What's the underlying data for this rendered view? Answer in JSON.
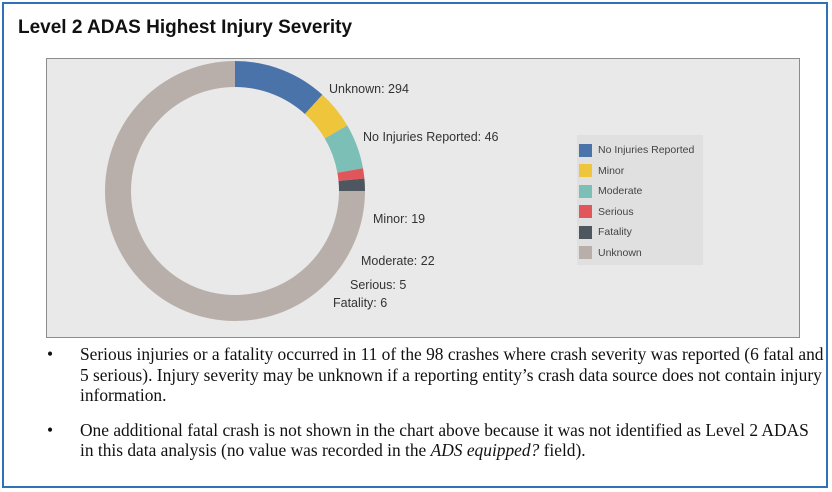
{
  "title": "Level 2 ADAS Highest Injury Severity",
  "chart_data": {
    "type": "donut",
    "title": "",
    "categories": [
      "No Injuries Reported",
      "Minor",
      "Moderate",
      "Serious",
      "Fatality",
      "Unknown"
    ],
    "values": [
      46,
      19,
      22,
      5,
      6,
      294
    ],
    "colors": [
      "#4a73aa",
      "#efc53b",
      "#7cbfb6",
      "#e0565a",
      "#4e5660",
      "#b9afaa"
    ],
    "data_labels": [
      "No Injuries Reported: 46",
      "Minor: 19",
      "Moderate: 22",
      "Serious: 5",
      "Fatality: 6",
      "Unknown: 294"
    ],
    "legend": {
      "placement": "right",
      "entries": [
        "No Injuries Reported",
        "Minor",
        "Moderate",
        "Serious",
        "Fatality",
        "Unknown"
      ]
    }
  },
  "notes": [
    {
      "bullet": "•",
      "text": "Serious injuries or a fatality occurred in 11 of the 98 crashes where crash severity was reported (6 fatal and 5 serious). Injury severity may be unknown if a reporting entity’s crash data source does not contain injury information."
    },
    {
      "bullet": "•",
      "text_before": "One additional fatal crash is not shown in the chart above because it was not identified as Level 2 ADAS in this data analysis (no value was recorded in the ",
      "text_italic": "ADS equipped?",
      "text_after": " field)."
    }
  ]
}
